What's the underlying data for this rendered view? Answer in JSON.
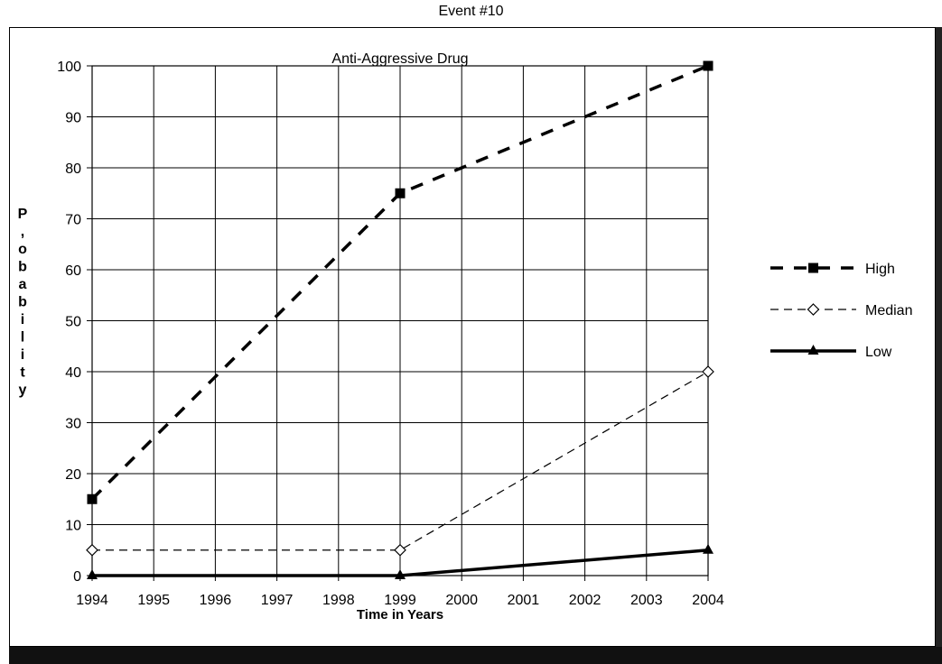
{
  "page": {
    "header": "Event #10"
  },
  "chart_data": {
    "type": "line",
    "title": "Anti-Aggressive Drug",
    "xlabel": "Time in Years",
    "ylabel_letters": [
      "P",
      ",",
      "o",
      "b",
      "a",
      "b",
      "i",
      "l",
      "i",
      "t",
      "y"
    ],
    "x": [
      1994,
      1995,
      1996,
      1997,
      1998,
      1999,
      2000,
      2001,
      2002,
      2003,
      2004
    ],
    "x_tick_labels": [
      "1994",
      "1995",
      "1996",
      "1997",
      "1998",
      "1999",
      "2000",
      "2001",
      "2002",
      "2003",
      "2004"
    ],
    "y_tick_labels": [
      "0",
      "10",
      "20",
      "30",
      "40",
      "50",
      "60",
      "70",
      "80",
      "90",
      "100"
    ],
    "ylim": [
      0,
      100
    ],
    "xlim": [
      1994,
      2004
    ],
    "grid": true,
    "legend_position": "right",
    "series": [
      {
        "name": "High",
        "x": [
          1994,
          1999,
          2004
        ],
        "values": [
          15,
          75,
          100
        ],
        "marker": "square",
        "line": "dash-bold",
        "color": "#000000"
      },
      {
        "name": "Median",
        "x": [
          1994,
          1999,
          2004
        ],
        "values": [
          5,
          5,
          40
        ],
        "marker": "diamond-open",
        "line": "dash-thin",
        "color": "#000000"
      },
      {
        "name": "Low",
        "x": [
          1994,
          1999,
          2004
        ],
        "values": [
          0,
          0,
          5
        ],
        "marker": "triangle",
        "line": "solid-bold",
        "color": "#000000"
      }
    ]
  }
}
